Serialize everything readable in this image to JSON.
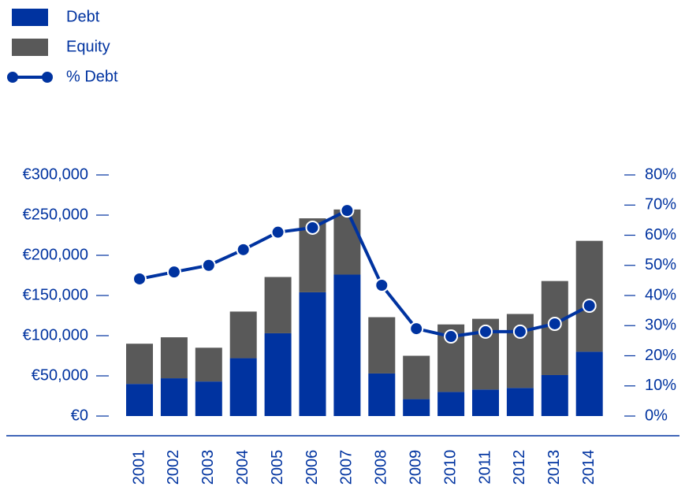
{
  "chart_data": {
    "type": "bar",
    "categories": [
      "2001",
      "2002",
      "2003",
      "2004",
      "2005",
      "2006",
      "2007",
      "2008",
      "2009",
      "2010",
      "2011",
      "2012",
      "2013",
      "2014"
    ],
    "series": [
      {
        "name": "Debt",
        "color": "#0033a0",
        "values": [
          40000,
          47000,
          43000,
          72000,
          103000,
          154000,
          176000,
          53000,
          21000,
          30000,
          33000,
          35000,
          51000,
          80000
        ]
      },
      {
        "name": "Equity",
        "color": "#595959",
        "values": [
          50000,
          51000,
          42000,
          58000,
          70000,
          92000,
          81000,
          70000,
          54000,
          84000,
          88000,
          92000,
          117000,
          138000
        ]
      },
      {
        "name": "% Debt",
        "color": "#0033a0",
        "type": "line",
        "axis": "y2",
        "values": [
          45.5,
          47.8,
          50,
          55.2,
          61,
          62.5,
          68.2,
          43.4,
          29,
          26.4,
          28,
          28,
          30.6,
          36.6
        ]
      }
    ],
    "stacked": true,
    "ylim": [
      0,
      300000
    ],
    "yticks": [
      {
        "value": 0,
        "label": "€0"
      },
      {
        "value": 50000,
        "label": "€50,000"
      },
      {
        "value": 100000,
        "label": "€100,000"
      },
      {
        "value": 150000,
        "label": "€150,000"
      },
      {
        "value": 200000,
        "label": "€200,000"
      },
      {
        "value": 250000,
        "label": "€250,000"
      },
      {
        "value": 300000,
        "label": "€300,000"
      }
    ],
    "y2lim": [
      0,
      80
    ],
    "y2ticks": [
      {
        "value": 0,
        "label": "0%"
      },
      {
        "value": 10,
        "label": "10%"
      },
      {
        "value": 20,
        "label": "20%"
      },
      {
        "value": 30,
        "label": "30%"
      },
      {
        "value": 40,
        "label": "40%"
      },
      {
        "value": 50,
        "label": "50%"
      },
      {
        "value": 60,
        "label": "60%"
      },
      {
        "value": 70,
        "label": "70%"
      },
      {
        "value": 80,
        "label": "80%"
      }
    ],
    "legend": "top-left"
  }
}
